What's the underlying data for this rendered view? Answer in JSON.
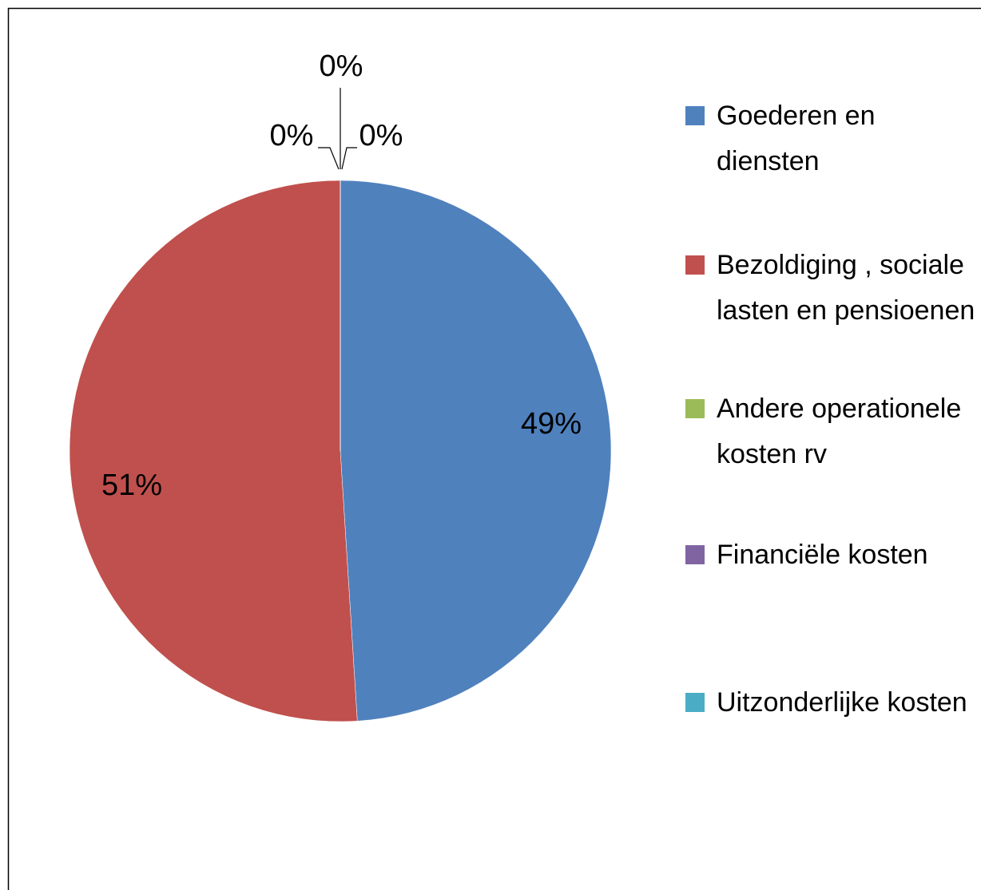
{
  "chart_data": {
    "type": "pie",
    "categories": [
      "Goederen en diensten",
      "Bezoldiging , sociale lasten en pensioenen",
      "Andere operationele kosten rv",
      "Financiële kosten",
      "Uitzonderlijke kosten"
    ],
    "values": [
      49,
      51,
      0,
      0,
      0
    ],
    "value_labels": [
      "49%",
      "51%",
      "0%",
      "0%",
      "0%"
    ],
    "colors": [
      "#4f81bd",
      "#c0504d",
      "#9bbb59",
      "#8064a2",
      "#4bacc6"
    ],
    "legend": "right"
  }
}
